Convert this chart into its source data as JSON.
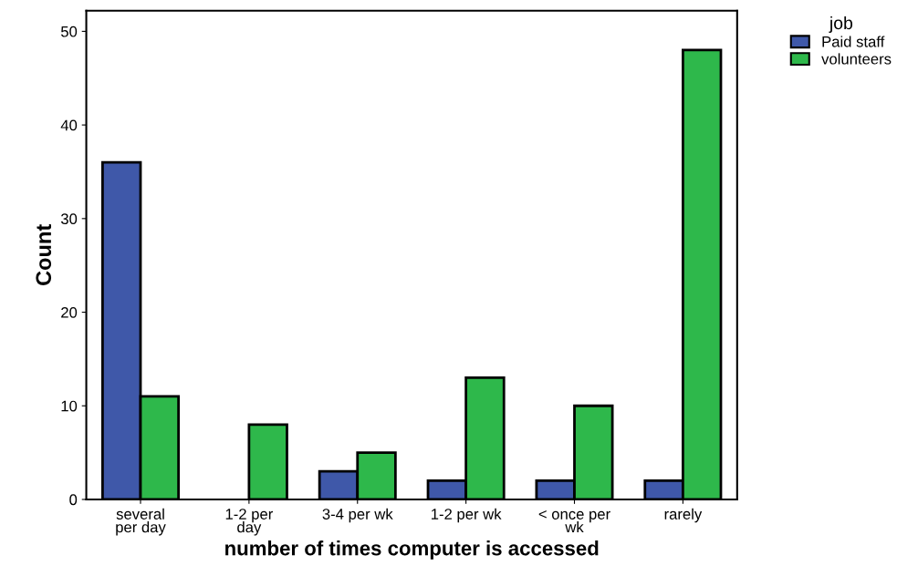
{
  "chart_data": {
    "type": "bar",
    "xlabel": "number of times computer is accessed",
    "ylabel": "Count",
    "legend_title": "job",
    "categories": [
      "several\nper day",
      "1-2 per\nday",
      "3-4 per wk",
      "1-2 per wk",
      "< once per\nwk",
      "rarely"
    ],
    "series": [
      {
        "name": "Paid staff",
        "color": "#3f58a9",
        "values": [
          36,
          0,
          3,
          2,
          2,
          2
        ]
      },
      {
        "name": "volunteers",
        "color": "#2eb84b",
        "values": [
          11,
          8,
          5,
          13,
          10,
          48
        ]
      }
    ],
    "ylim": [
      0,
      52.2
    ],
    "yticks": [
      0,
      10,
      20,
      30,
      40,
      50
    ],
    "grid": false,
    "legend": "top right"
  }
}
